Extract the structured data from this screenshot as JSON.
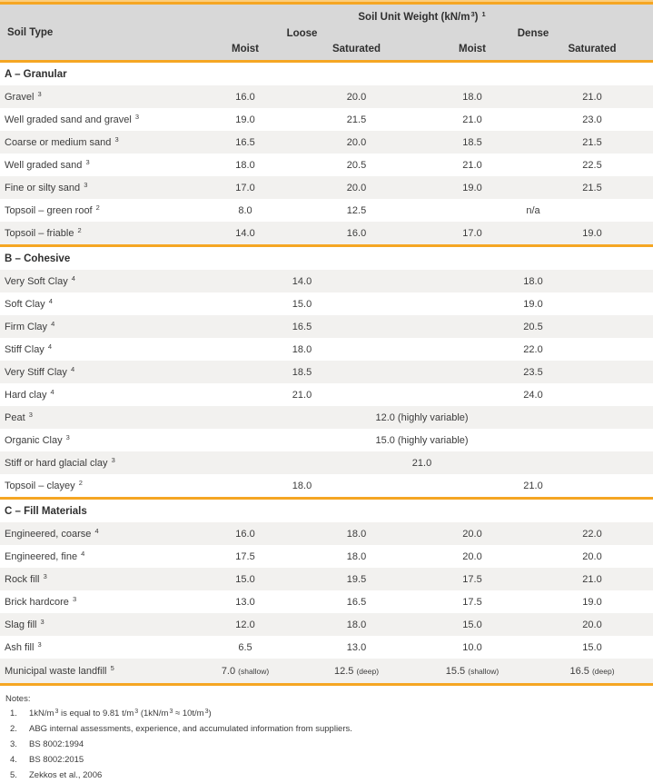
{
  "colors": {
    "accent_orange": "#F5A623",
    "accent_orange_light": "#FCCD7C",
    "header_bg": "#D8D8D8",
    "row_alt_bg": "#F2F1EF",
    "text": "#3C3C3C"
  },
  "header": {
    "title": {
      "pre": "Soil Unit Weight (kN/m",
      "sup_unit": "3",
      "close": ")",
      "note_ref": "1"
    },
    "soil_type_label": "Soil Type",
    "groups": [
      "Loose",
      "Dense"
    ],
    "sub_columns": [
      "Moist",
      "Saturated",
      "Moist",
      "Saturated"
    ]
  },
  "sections": [
    {
      "header": "A – Granular",
      "rows": [
        {
          "label": "Gravel",
          "sup": "3",
          "cells": [
            {
              "text": "16.0"
            },
            {
              "text": "20.0"
            },
            {
              "text": "18.0"
            },
            {
              "text": "21.0"
            }
          ]
        },
        {
          "label": "Well graded sand and gravel",
          "sup": "3",
          "cells": [
            {
              "text": "19.0"
            },
            {
              "text": "21.5"
            },
            {
              "text": "21.0"
            },
            {
              "text": "23.0"
            }
          ]
        },
        {
          "label": "Coarse or medium sand",
          "sup": "3",
          "cells": [
            {
              "text": "16.5"
            },
            {
              "text": "20.0"
            },
            {
              "text": "18.5"
            },
            {
              "text": "21.5"
            }
          ]
        },
        {
          "label": "Well graded sand",
          "sup": "3",
          "cells": [
            {
              "text": "18.0"
            },
            {
              "text": "20.5"
            },
            {
              "text": "21.0"
            },
            {
              "text": "22.5"
            }
          ]
        },
        {
          "label": "Fine or silty sand",
          "sup": "3",
          "cells": [
            {
              "text": "17.0"
            },
            {
              "text": "20.0"
            },
            {
              "text": "19.0"
            },
            {
              "text": "21.5"
            }
          ]
        },
        {
          "label": "Topsoil – green roof",
          "sup": "2",
          "cells": [
            {
              "text": "8.0"
            },
            {
              "text": "12.5"
            },
            {
              "text": "n/a",
              "span": 2
            }
          ]
        },
        {
          "label": "Topsoil – friable",
          "sup": "2",
          "cells": [
            {
              "text": "14.0"
            },
            {
              "text": "16.0"
            },
            {
              "text": "17.0"
            },
            {
              "text": "19.0"
            }
          ]
        }
      ]
    },
    {
      "header": "B – Cohesive",
      "rows": [
        {
          "label": "Very Soft Clay",
          "sup": "4",
          "cells": [
            {
              "text": "14.0",
              "span": 2
            },
            {
              "text": "18.0",
              "span": 2
            }
          ]
        },
        {
          "label": "Soft Clay",
          "sup": "4",
          "cells": [
            {
              "text": "15.0",
              "span": 2
            },
            {
              "text": "19.0",
              "span": 2
            }
          ]
        },
        {
          "label": "Firm Clay",
          "sup": "4",
          "cells": [
            {
              "text": "16.5",
              "span": 2
            },
            {
              "text": "20.5",
              "span": 2
            }
          ]
        },
        {
          "label": "Stiff Clay",
          "sup": "4",
          "cells": [
            {
              "text": "18.0",
              "span": 2
            },
            {
              "text": "22.0",
              "span": 2
            }
          ]
        },
        {
          "label": "Very Stiff Clay",
          "sup": "4",
          "cells": [
            {
              "text": "18.5",
              "span": 2
            },
            {
              "text": "23.5",
              "span": 2
            }
          ]
        },
        {
          "label": "Hard clay",
          "sup": "4",
          "cells": [
            {
              "text": "21.0",
              "span": 2
            },
            {
              "text": "24.0",
              "span": 2
            }
          ]
        },
        {
          "label": "Peat",
          "sup": "3",
          "cells": [
            {
              "text": "12.0 (highly variable)",
              "span": 4
            }
          ]
        },
        {
          "label": "Organic Clay",
          "sup": "3",
          "cells": [
            {
              "text": "15.0 (highly variable)",
              "span": 4
            }
          ]
        },
        {
          "label": "Stiff or hard glacial clay",
          "sup": "3",
          "cells": [
            {
              "text": "21.0",
              "span": 4
            }
          ]
        },
        {
          "label": "Topsoil – clayey",
          "sup": "2",
          "cells": [
            {
              "text": "18.0",
              "span": 2
            },
            {
              "text": "21.0",
              "span": 2
            }
          ]
        }
      ]
    },
    {
      "header": "C – Fill Materials",
      "rows": [
        {
          "label": "Engineered, coarse",
          "sup": "4",
          "cells": [
            {
              "text": "16.0"
            },
            {
              "text": "18.0"
            },
            {
              "text": "20.0"
            },
            {
              "text": "22.0"
            }
          ]
        },
        {
          "label": "Engineered, fine",
          "sup": "4",
          "cells": [
            {
              "text": "17.5"
            },
            {
              "text": "18.0"
            },
            {
              "text": "20.0"
            },
            {
              "text": "20.0"
            }
          ]
        },
        {
          "label": "Rock fill",
          "sup": "3",
          "cells": [
            {
              "text": "15.0"
            },
            {
              "text": "19.5"
            },
            {
              "text": "17.5"
            },
            {
              "text": "21.0"
            }
          ]
        },
        {
          "label": "Brick hardcore",
          "sup": "3",
          "cells": [
            {
              "text": "13.0"
            },
            {
              "text": "16.5"
            },
            {
              "text": "17.5"
            },
            {
              "text": "19.0"
            }
          ]
        },
        {
          "label": "Slag fill",
          "sup": "3",
          "cells": [
            {
              "text": "12.0"
            },
            {
              "text": "18.0"
            },
            {
              "text": "15.0"
            },
            {
              "text": "20.0"
            }
          ]
        },
        {
          "label": "Ash fill",
          "sup": "3",
          "cells": [
            {
              "text": "6.5"
            },
            {
              "text": "13.0"
            },
            {
              "text": "10.0"
            },
            {
              "text": "15.0"
            }
          ]
        },
        {
          "label": "Municipal waste landfill",
          "sup": "5",
          "tall": true,
          "cells": [
            {
              "text": "7.0",
              "small": "(shallow)"
            },
            {
              "text": "12.5",
              "small": "(deep)"
            },
            {
              "text": "15.5",
              "small": "(shallow)"
            },
            {
              "text": "16.5",
              "small": "(deep)"
            }
          ]
        }
      ]
    }
  ],
  "notes": {
    "title": "Notes:",
    "items": [
      {
        "num": "1.",
        "parts": [
          {
            "t": "1kN/m"
          },
          {
            "t": "3",
            "sup": true
          },
          {
            "t": " is equal to 9.81 t/m"
          },
          {
            "t": "3",
            "sup": true
          },
          {
            "t": " (1kN/m"
          },
          {
            "t": "3",
            "sup": true
          },
          {
            "t": " ≈ 10t/m"
          },
          {
            "t": "3",
            "sup": true
          },
          {
            "t": ")"
          }
        ]
      },
      {
        "num": "2.",
        "parts": [
          {
            "t": "ABG internal assessments, experience, and accumulated information from suppliers."
          }
        ]
      },
      {
        "num": "3.",
        "parts": [
          {
            "t": "BS 8002:1994"
          }
        ]
      },
      {
        "num": "4.",
        "parts": [
          {
            "t": "BS 8002:2015"
          }
        ]
      },
      {
        "num": "5.",
        "parts": [
          {
            "t": "Zekkos et al., 2006"
          }
        ]
      }
    ]
  }
}
